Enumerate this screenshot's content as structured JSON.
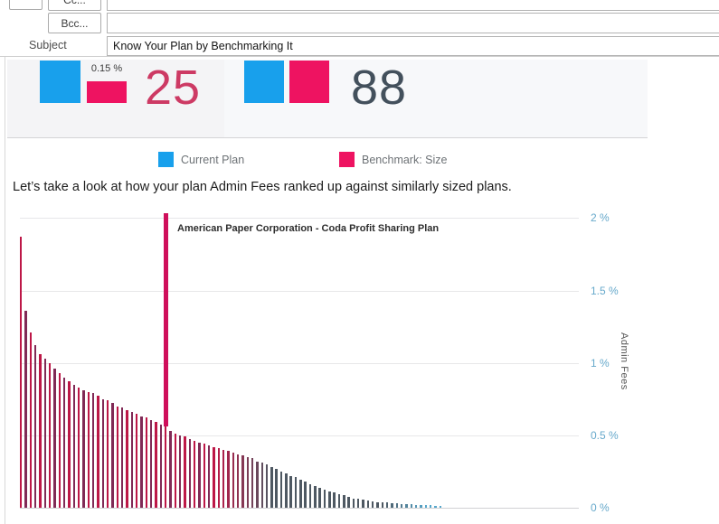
{
  "compose": {
    "cc_label": "Cc...",
    "bcc_label": "Bcc...",
    "cc_value": "",
    "bcc_value": "",
    "subject_label": "Subject",
    "subject_value": "Know Your Plan by Benchmarking It"
  },
  "metrics": {
    "card1": {
      "benchmark_label": "0.15 %",
      "value": "25"
    },
    "card2": {
      "value": "88"
    }
  },
  "legend": {
    "items": [
      {
        "label": "Current Plan",
        "color": "#18a0ec"
      },
      {
        "label": "Benchmark: Size",
        "color": "#ee1361"
      }
    ]
  },
  "intro_text": "Let’s take a look at how your plan Admin Fees ranked up against similarly sized plans.",
  "colors": {
    "current_plan_blue": "#18a0ec",
    "benchmark_pink": "#ee1361",
    "metric_crimson": "#cd3a64",
    "metric_dark": "#43505c",
    "tick_blue": "#67a9cb",
    "bar_crimson": "#bd1747",
    "bar_crimson_dark": "#802a56",
    "bar_slate": "#4e5862",
    "bar_dot_blue": "#57a7cb",
    "highlight_pink": "#cf0f5b"
  },
  "chart_data": {
    "type": "bar",
    "title": "",
    "annotation": "American Paper Corporation - Coda Profit Sharing Plan",
    "ylabel": "Admin Fees",
    "unit": "%",
    "ylim": [
      0,
      2
    ],
    "yticks": [
      {
        "label": "2 %",
        "value": 2
      },
      {
        "label": "1.5 %",
        "value": 1.5
      },
      {
        "label": "1 %",
        "value": 1
      },
      {
        "label": "0.5 %",
        "value": 0.5
      },
      {
        "label": "0 %",
        "value": 0
      }
    ],
    "grid": true,
    "legend_position": "none",
    "current_plan_index": 30,
    "plan_count": 88,
    "values": [
      1.87,
      1.36,
      1.21,
      1.12,
      1.06,
      1.03,
      1.0,
      0.96,
      0.93,
      0.9,
      0.87,
      0.85,
      0.83,
      0.81,
      0.8,
      0.79,
      0.77,
      0.75,
      0.74,
      0.72,
      0.7,
      0.69,
      0.67,
      0.66,
      0.645,
      0.63,
      0.62,
      0.605,
      0.59,
      0.575,
      0.56,
      0.53,
      0.51,
      0.5,
      0.49,
      0.475,
      0.46,
      0.45,
      0.44,
      0.43,
      0.42,
      0.41,
      0.4,
      0.39,
      0.38,
      0.37,
      0.36,
      0.35,
      0.34,
      0.32,
      0.31,
      0.3,
      0.28,
      0.265,
      0.25,
      0.235,
      0.22,
      0.21,
      0.195,
      0.18,
      0.165,
      0.15,
      0.135,
      0.125,
      0.115,
      0.105,
      0.095,
      0.085,
      0.075,
      0.065,
      0.06,
      0.055,
      0.05,
      0.045,
      0.04,
      0.038,
      0.035,
      0.032,
      0.03,
      0.027,
      0.025,
      0.023,
      0.021,
      0.019,
      0.018,
      0.016,
      0.015,
      0.014
    ]
  }
}
